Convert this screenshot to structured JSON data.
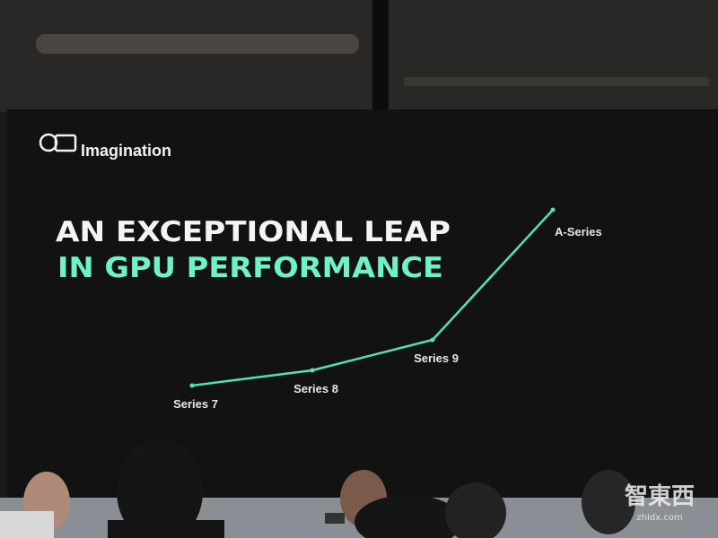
{
  "logo": {
    "text": "Imagination"
  },
  "title": {
    "line1": "AN EXCEPTIONAL LEAP",
    "line2": "IN GPU PERFORMANCE"
  },
  "chart_data": {
    "type": "line",
    "categories": [
      "Series 7",
      "Series 8",
      "Series 9",
      "A-Series"
    ],
    "values": [
      30,
      47,
      81,
      226
    ],
    "color": "#4fe3b8",
    "ylim": [
      0,
      250
    ]
  },
  "watermark": {
    "name": "智東西",
    "site": "zhidx.com"
  }
}
